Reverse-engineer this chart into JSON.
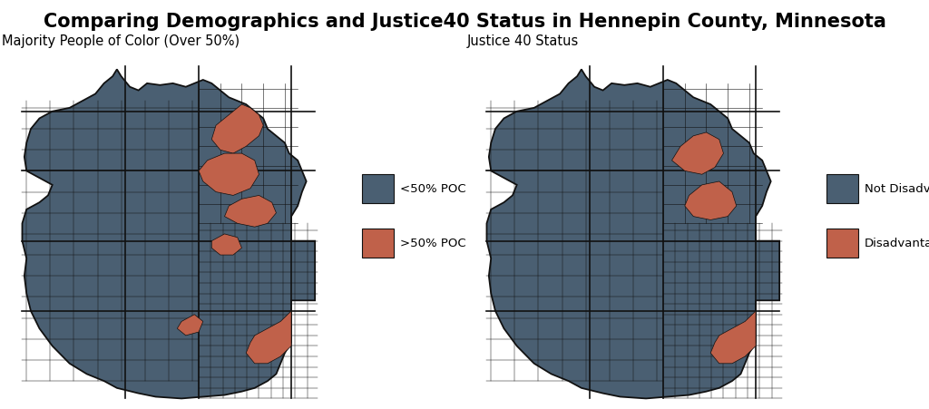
{
  "title": "Comparing Demographics and Justice40 Status in Hennepin County, Minnesota",
  "title_fontsize": 15,
  "title_fontweight": "bold",
  "left_subtitle": "Majority People of Color (Over 50%)",
  "right_subtitle": "Justice 40 Status",
  "subtitle_fontsize": 10.5,
  "background_color": "#ffffff",
  "dark_color": "#4a5f72",
  "highlight_color": "#c0614a",
  "border_color": "#111111",
  "left_legend": [
    {
      "label": "<50% POC",
      "color": "#4a5f72"
    },
    {
      "label": ">50% POC",
      "color": "#c0614a"
    }
  ],
  "right_legend": [
    {
      "label": "Not Disadvantaged",
      "color": "#4a5f72"
    },
    {
      "label": "Disadvantaged",
      "color": "#c0614a"
    }
  ]
}
